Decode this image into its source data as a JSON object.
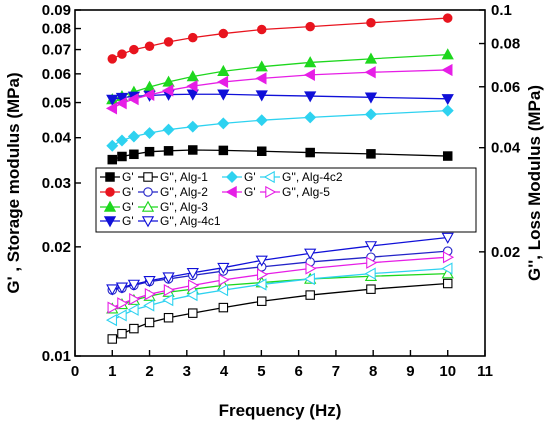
{
  "chart_data": {
    "type": "scatter",
    "xlabel": "Frequency (Hz)",
    "ylabel_left": "G' , Storage modulus (MPa)",
    "ylabel_right": "G'', Loss Modulus (MPa)",
    "xlim": [
      0,
      11
    ],
    "ylim_left": [
      0.01,
      0.09
    ],
    "ylim_right": [
      0.01,
      0.1
    ],
    "yscale": "log",
    "grid": false,
    "legend_position": "center",
    "x_ticks": [
      0,
      1,
      2,
      3,
      4,
      5,
      6,
      7,
      8,
      9,
      10,
      11
    ],
    "y_left_ticks": [
      {
        "value": 0.01,
        "label": "0.01"
      },
      {
        "value": 0.02,
        "label": "0.02"
      },
      {
        "value": 0.03,
        "label": "0.03"
      },
      {
        "value": 0.04,
        "label": "0.04"
      },
      {
        "value": 0.05,
        "label": "0.05"
      },
      {
        "value": 0.06,
        "label": "0.06"
      },
      {
        "value": 0.07,
        "label": "0.07"
      },
      {
        "value": 0.08,
        "label": "0.08"
      },
      {
        "value": 0.09,
        "label": "0.09"
      }
    ],
    "y_right_ticks": [
      {
        "value": 0.02,
        "label": "0.02"
      },
      {
        "value": 0.04,
        "label": "0.04"
      },
      {
        "value": 0.06,
        "label": "0.06"
      },
      {
        "value": 0.08,
        "label": "0.08"
      },
      {
        "value": 0.1,
        "label": "0.1"
      }
    ],
    "x": [
      1,
      1.26,
      1.58,
      2,
      2.51,
      3.16,
      3.98,
      5.01,
      6.31,
      7.94,
      10
    ],
    "series": [
      {
        "label": "G'",
        "axis": "left",
        "marker": "square",
        "filled": true,
        "color": "#000000",
        "values": [
          0.0348,
          0.0355,
          0.036,
          0.0366,
          0.0368,
          0.037,
          0.0369,
          0.0367,
          0.0364,
          0.0361,
          0.0356
        ]
      },
      {
        "label": "G'', Alg-1",
        "axis": "right",
        "marker": "square",
        "filled": false,
        "color": "#000000",
        "values": [
          0.0112,
          0.0116,
          0.012,
          0.0125,
          0.0129,
          0.0133,
          0.0138,
          0.0144,
          0.015,
          0.0156,
          0.0162
        ]
      },
      {
        "label": "G'",
        "axis": "left",
        "marker": "circle",
        "filled": true,
        "color": "#e8141e",
        "values": [
          0.066,
          0.068,
          0.07,
          0.0715,
          0.0735,
          0.0755,
          0.0775,
          0.0795,
          0.081,
          0.083,
          0.0855
        ]
      },
      {
        "label": "G'', Alg-2",
        "axis": "right",
        "marker": "circle",
        "filled": false,
        "color": "#2424c8",
        "values": [
          0.0155,
          0.0157,
          0.016,
          0.0164,
          0.0167,
          0.0171,
          0.0176,
          0.0181,
          0.0187,
          0.0193,
          0.0201
        ]
      },
      {
        "label": "G'",
        "axis": "left",
        "marker": "triangle-up",
        "filled": true,
        "color": "#1ed71e",
        "values": [
          0.051,
          0.052,
          0.0535,
          0.0552,
          0.057,
          0.059,
          0.061,
          0.0628,
          0.0645,
          0.066,
          0.0678
        ]
      },
      {
        "label": "G'', Alg-3",
        "axis": "right",
        "marker": "triangle-up",
        "filled": false,
        "color": "#1ed71e",
        "values": [
          0.0137,
          0.0141,
          0.0145,
          0.0149,
          0.0153,
          0.0156,
          0.016,
          0.0163,
          0.0167,
          0.017,
          0.0173
        ]
      },
      {
        "label": "G'",
        "axis": "left",
        "marker": "triangle-down",
        "filled": true,
        "color": "#1010d8",
        "values": [
          0.051,
          0.0516,
          0.052,
          0.0523,
          0.0526,
          0.0527,
          0.0527,
          0.0524,
          0.0521,
          0.0517,
          0.0512
        ]
      },
      {
        "label": "G'', Alg-4c1",
        "axis": "right",
        "marker": "triangle-down",
        "filled": false,
        "color": "#1010d8",
        "values": [
          0.0156,
          0.0158,
          0.0161,
          0.0165,
          0.0169,
          0.0174,
          0.018,
          0.0189,
          0.0198,
          0.0208,
          0.022
        ]
      },
      {
        "label": "G'",
        "axis": "left",
        "marker": "diamond",
        "filled": true,
        "color": "#2ed2f0",
        "values": [
          0.038,
          0.0393,
          0.0403,
          0.0412,
          0.0421,
          0.0429,
          0.0438,
          0.0447,
          0.0455,
          0.0464,
          0.0475
        ]
      },
      {
        "label": "G'', Alg-4c2",
        "axis": "right",
        "marker": "triangle-left",
        "filled": false,
        "color": "#2ed2f0",
        "values": [
          0.0127,
          0.0131,
          0.0136,
          0.014,
          0.0145,
          0.015,
          0.0155,
          0.0161,
          0.0167,
          0.0173,
          0.0179
        ]
      },
      {
        "label": "G'",
        "axis": "left",
        "marker": "triangle-left",
        "filled": true,
        "color": "#e61ee6",
        "values": [
          0.0482,
          0.0498,
          0.0511,
          0.0525,
          0.054,
          0.0555,
          0.057,
          0.0583,
          0.0596,
          0.0606,
          0.0615
        ]
      },
      {
        "label": "G'', Alg-5",
        "axis": "right",
        "marker": "triangle-right",
        "filled": false,
        "color": "#e61ee6",
        "values": [
          0.0138,
          0.0142,
          0.0146,
          0.0151,
          0.0155,
          0.016,
          0.0166,
          0.0172,
          0.0179,
          0.0186,
          0.0193
        ]
      }
    ]
  }
}
